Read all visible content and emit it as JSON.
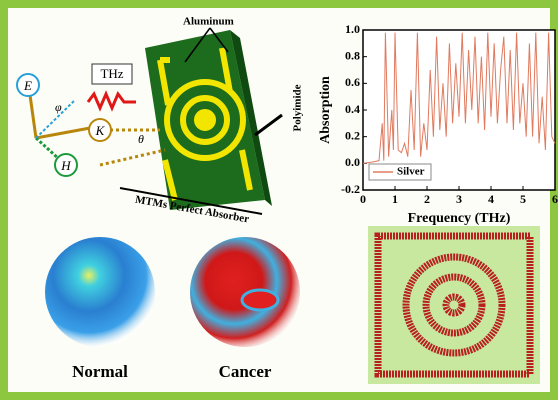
{
  "diagram": {
    "labels": {
      "aluminum": "Aluminum",
      "polyimide": "Polyimide",
      "thz": "THz",
      "absorber": "MTMs Perfect Absorber",
      "e": "E",
      "k": "K",
      "h": "H",
      "phi": "φ",
      "theta": "θ",
      "normal": "Normal",
      "cancer": "Cancer"
    }
  },
  "chart_data": {
    "type": "line",
    "x_label": "Frequency (THz)",
    "y_label": "Absorption",
    "x": [
      0,
      0.3,
      0.5,
      0.6,
      0.65,
      0.7,
      0.8,
      0.9,
      0.95,
      1.0,
      1.1,
      1.2,
      1.3,
      1.4,
      1.5,
      1.6,
      1.7,
      1.8,
      1.9,
      2.0,
      2.1,
      2.2,
      2.3,
      2.4,
      2.5,
      2.6,
      2.7,
      2.8,
      2.9,
      3.0,
      3.1,
      3.2,
      3.3,
      3.4,
      3.5,
      3.6,
      3.7,
      3.8,
      3.9,
      4.0,
      4.1,
      4.2,
      4.3,
      4.4,
      4.5,
      4.6,
      4.7,
      4.8,
      4.9,
      5.0,
      5.1,
      5.2,
      5.3,
      5.4,
      5.5,
      5.6,
      5.7,
      5.8,
      5.9,
      6.0
    ],
    "series": [
      {
        "name": "Silver",
        "color": "#e07a5f",
        "values": [
          0,
          0.01,
          0.02,
          0.3,
          0.02,
          0.98,
          0.05,
          0.4,
          0.1,
          0.98,
          0.1,
          0.08,
          0.15,
          0.05,
          0.55,
          0.1,
          0.98,
          0.05,
          0.3,
          0.1,
          0.7,
          0.2,
          0.95,
          0.25,
          0.6,
          0.2,
          0.9,
          0.3,
          0.75,
          0.35,
          0.98,
          0.3,
          0.85,
          0.4,
          0.95,
          0.3,
          0.8,
          0.25,
          0.98,
          0.35,
          0.9,
          0.3,
          0.7,
          0.95,
          0.3,
          0.85,
          0.25,
          0.98,
          0.3,
          0.6,
          0.2,
          0.9,
          0.2,
          0.98,
          0.15,
          0.5,
          0.1,
          0.98,
          0.2,
          0.15
        ]
      }
    ],
    "xlim": [
      0,
      6
    ],
    "ylim": [
      -0.2,
      1.0
    ],
    "xticks": [
      0,
      1,
      2,
      3,
      4,
      5,
      6
    ],
    "yticks": [
      -0.2,
      {
        "value": 0,
        "label": "0.0"
      },
      0.2,
      0.4,
      0.6,
      0.8,
      {
        "value": 1,
        "label": "1.0"
      }
    ],
    "legend": "lower left"
  }
}
